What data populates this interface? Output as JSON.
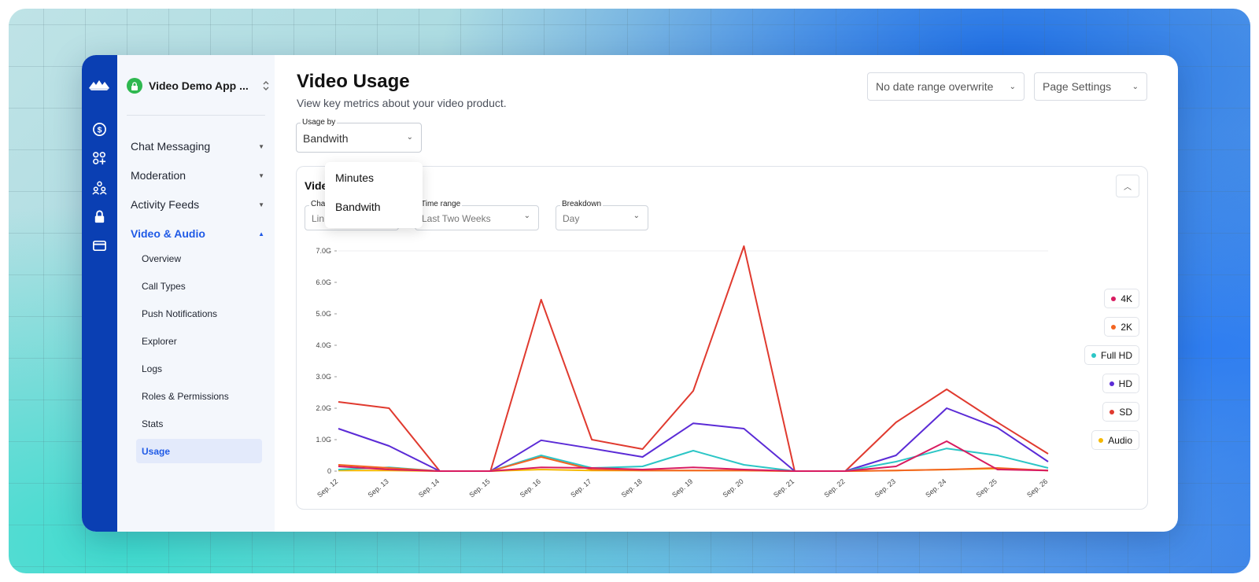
{
  "project": {
    "name": "Video Demo App ..."
  },
  "rail_icons": [
    "stream-logo",
    "dollar-icon",
    "apps-icon",
    "users-icon",
    "lock-icon",
    "card-icon"
  ],
  "sidebar": {
    "sections": [
      {
        "label": "Chat Messaging",
        "expanded": false
      },
      {
        "label": "Moderation",
        "expanded": false
      },
      {
        "label": "Activity Feeds",
        "expanded": false
      },
      {
        "label": "Video & Audio",
        "expanded": true
      }
    ],
    "sub_items": [
      {
        "label": "Overview"
      },
      {
        "label": "Call Types"
      },
      {
        "label": "Push Notifications"
      },
      {
        "label": "Explorer"
      },
      {
        "label": "Logs"
      },
      {
        "label": "Roles & Permissions"
      },
      {
        "label": "Stats"
      },
      {
        "label": "Usage",
        "selected": true
      }
    ]
  },
  "header": {
    "title": "Video Usage",
    "subtitle": "View key metrics about your video product.",
    "date_button": "No date range overwrite",
    "settings_button": "Page Settings"
  },
  "usage_by": {
    "label": "Usage by",
    "value": "Bandwith",
    "options": [
      "Minutes",
      "Bandwith"
    ]
  },
  "card": {
    "title": "Vide",
    "chart_type": {
      "label": "Cha",
      "value": "Lin"
    },
    "time_range": {
      "label": "Time range",
      "value": "Last Two Weeks"
    },
    "breakdown": {
      "label": "Breakdown",
      "value": "Day"
    }
  },
  "chart_data": {
    "type": "line",
    "x": [
      "Sep. 12",
      "Sep. 13",
      "Sep. 14",
      "Sep. 15",
      "Sep. 16",
      "Sep. 17",
      "Sep. 18",
      "Sep. 19",
      "Sep. 20",
      "Sep. 21",
      "Sep. 22",
      "Sep. 23",
      "Sep. 24",
      "Sep. 25",
      "Sep. 26"
    ],
    "yticks": [
      "0",
      "1.0G",
      "2.0G",
      "3.0G",
      "4.0G",
      "5.0G",
      "6.0G",
      "7.0G"
    ],
    "ylim": [
      0,
      7.0
    ],
    "series": [
      {
        "name": "4K",
        "color": "#d81b60",
        "values": [
          0.15,
          0.05,
          0,
          0,
          0.12,
          0.1,
          0.05,
          0.12,
          0.05,
          0,
          0,
          0.15,
          0.95,
          0.05,
          0.02
        ]
      },
      {
        "name": "2K",
        "color": "#f26522",
        "values": [
          0.2,
          0.1,
          0,
          0,
          0.45,
          0.05,
          0.02,
          0.02,
          0.02,
          0,
          0,
          0.02,
          0.05,
          0.1,
          0.02
        ]
      },
      {
        "name": "Full HD",
        "color": "#2cc6c6",
        "values": [
          0.05,
          0.12,
          0,
          0,
          0.5,
          0.1,
          0.15,
          0.65,
          0.2,
          0,
          0,
          0.3,
          0.72,
          0.5,
          0.1
        ]
      },
      {
        "name": "HD",
        "color": "#5b2bd6",
        "values": [
          1.35,
          0.8,
          0,
          0,
          0.98,
          0.72,
          0.45,
          1.52,
          1.35,
          0,
          0,
          0.5,
          2.0,
          1.38,
          0.3
        ]
      },
      {
        "name": "SD",
        "color": "#e03a2f",
        "values": [
          2.2,
          2.0,
          0,
          0,
          5.45,
          1.0,
          0.7,
          2.55,
          7.15,
          0,
          0,
          1.55,
          2.6,
          1.55,
          0.55
        ]
      },
      {
        "name": "Audio",
        "color": "#f5b800",
        "values": [
          0.02,
          0.02,
          0,
          0,
          0.05,
          0.02,
          0.02,
          0.02,
          0.02,
          0,
          0,
          0.02,
          0.05,
          0.08,
          0.02
        ]
      }
    ]
  }
}
